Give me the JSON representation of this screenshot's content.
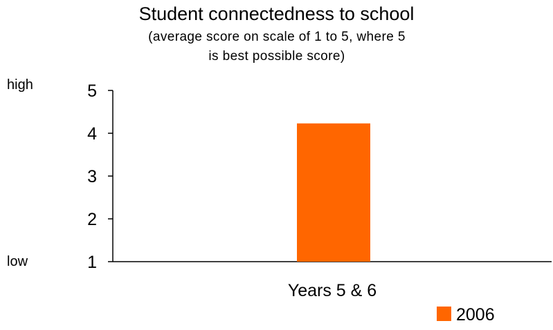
{
  "chart_data": {
    "type": "bar",
    "title": "Student connectedness to school",
    "subtitle": "(average score on scale of 1 to 5, where 5 is best possible score)",
    "categories": [
      "Years 5 & 6"
    ],
    "series": [
      {
        "name": "2006",
        "values": [
          4.23
        ],
        "color": "#ff6600"
      }
    ],
    "ylim": [
      1,
      5
    ],
    "yticks": [
      1,
      2,
      3,
      4,
      5
    ],
    "y_annotations": {
      "high": "high",
      "low": "low"
    },
    "xlabel": "",
    "ylabel": "",
    "grid": false,
    "legend": "bottom-right"
  }
}
